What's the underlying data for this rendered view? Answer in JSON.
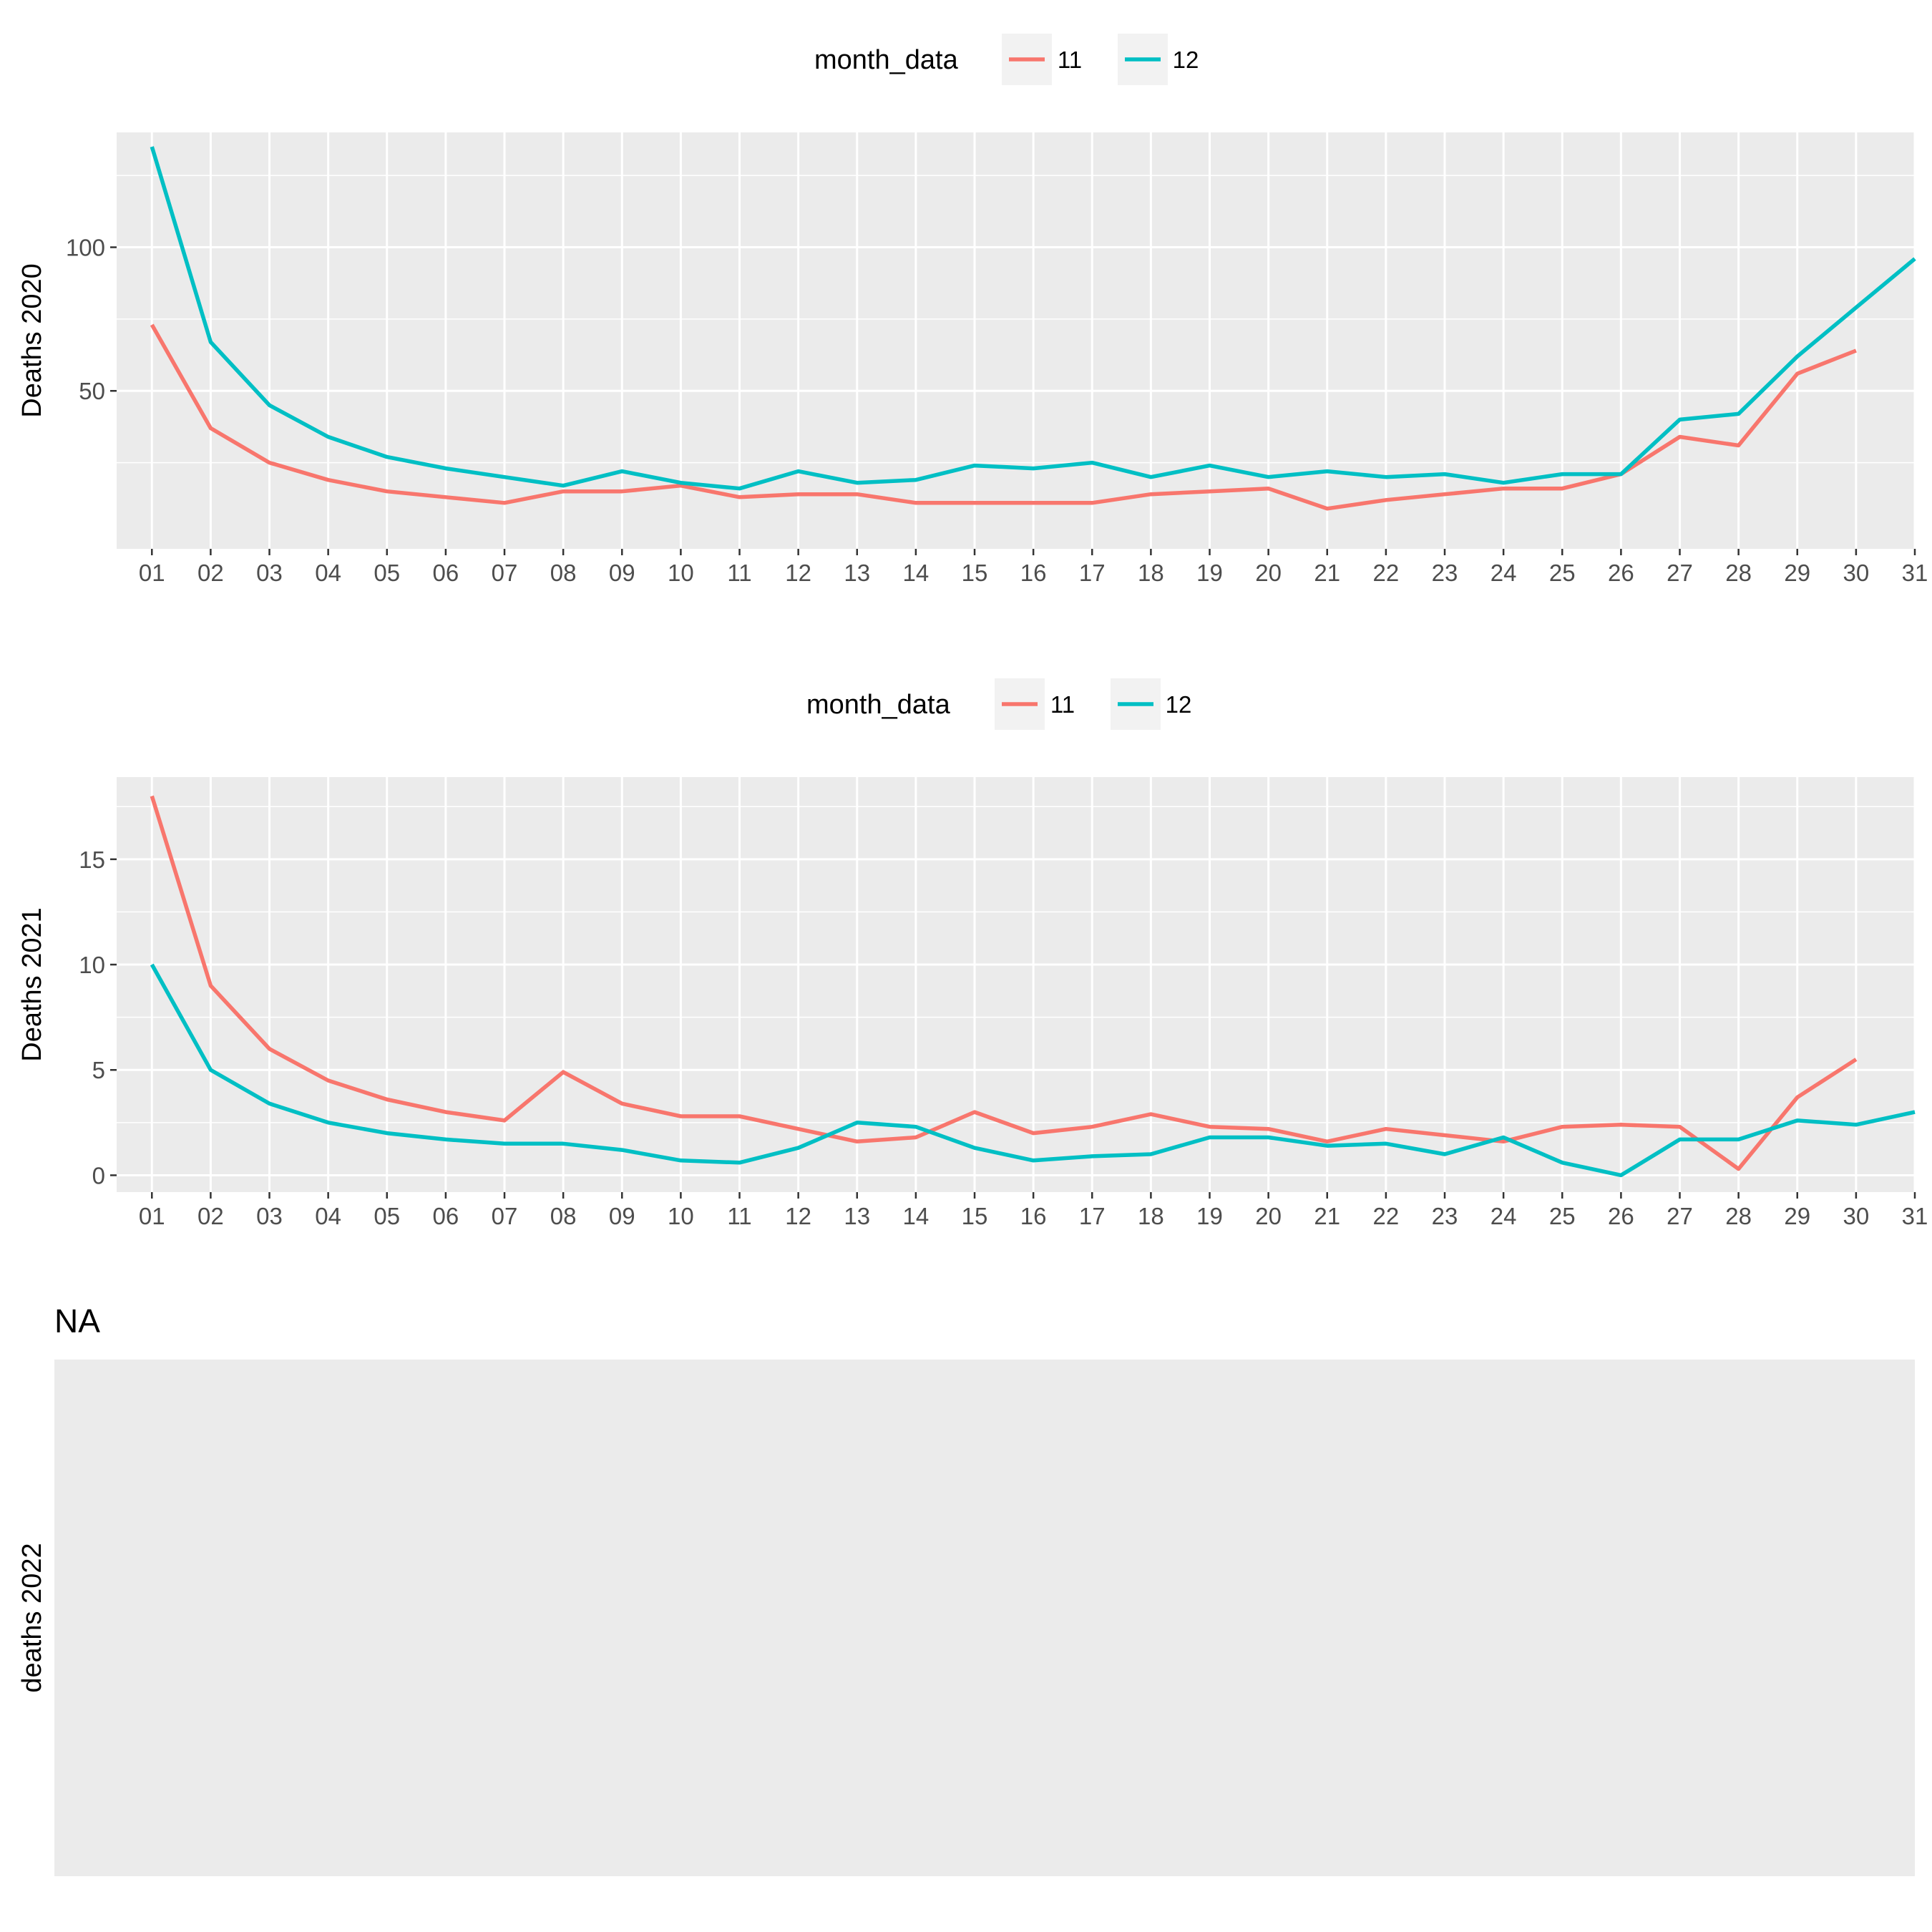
{
  "chart_data": [
    {
      "type": "line",
      "ylabel": "Deaths  2020",
      "x": [
        "01",
        "02",
        "03",
        "04",
        "05",
        "06",
        "07",
        "08",
        "09",
        "10",
        "11",
        "12",
        "13",
        "14",
        "15",
        "16",
        "17",
        "18",
        "19",
        "20",
        "21",
        "22",
        "23",
        "24",
        "25",
        "26",
        "27",
        "28",
        "29",
        "30",
        "31"
      ],
      "ylim": [
        -5,
        140
      ],
      "y_ticks": [
        50,
        100
      ],
      "legend": {
        "title": "month_data",
        "position": "top"
      },
      "series": [
        {
          "name": "11",
          "color": "#F8766D",
          "values": [
            73,
            37,
            25,
            19,
            15,
            13,
            11,
            15,
            15,
            17,
            13,
            14,
            14,
            11,
            11,
            11,
            11,
            14,
            15,
            16,
            9,
            12,
            14,
            16,
            16,
            21,
            34,
            31,
            56,
            64,
            null
          ]
        },
        {
          "name": "12",
          "color": "#00BFC4",
          "values": [
            135,
            67,
            45,
            34,
            27,
            23,
            20,
            17,
            22,
            18,
            16,
            22,
            18,
            19,
            24,
            23,
            25,
            20,
            24,
            20,
            22,
            20,
            21,
            18,
            21,
            21,
            40,
            42,
            62,
            79,
            96
          ]
        }
      ]
    },
    {
      "type": "line",
      "ylabel": "Deaths  2021",
      "x": [
        "01",
        "02",
        "03",
        "04",
        "05",
        "06",
        "07",
        "08",
        "09",
        "10",
        "11",
        "12",
        "13",
        "14",
        "15",
        "16",
        "17",
        "18",
        "19",
        "20",
        "21",
        "22",
        "23",
        "24",
        "25",
        "26",
        "27",
        "28",
        "29",
        "30",
        "31"
      ],
      "ylim": [
        -0.8,
        18.9
      ],
      "y_ticks": [
        0,
        5,
        10,
        15
      ],
      "legend": {
        "title": "month_data",
        "position": "top"
      },
      "series": [
        {
          "name": "11",
          "color": "#F8766D",
          "values": [
            18,
            9,
            6,
            4.5,
            3.6,
            3,
            2.6,
            4.9,
            3.4,
            2.8,
            2.8,
            2.2,
            1.6,
            1.8,
            3,
            2,
            2.3,
            2.9,
            2.3,
            2.2,
            1.6,
            2.2,
            1.9,
            1.6,
            2.3,
            2.4,
            2.3,
            0.3,
            3.7,
            5.5,
            null
          ]
        },
        {
          "name": "12",
          "color": "#00BFC4",
          "values": [
            10,
            5,
            3.4,
            2.5,
            2,
            1.7,
            1.5,
            1.5,
            1.2,
            0.7,
            0.6,
            1.3,
            2.5,
            2.3,
            1.3,
            0.7,
            0.9,
            1,
            1.8,
            1.8,
            1.4,
            1.5,
            1,
            1.8,
            0.6,
            0,
            1.7,
            1.7,
            2.6,
            2.4,
            3
          ]
        }
      ]
    },
    {
      "type": "line",
      "title": "NA",
      "ylabel": "deaths  2022",
      "x": [],
      "series": []
    }
  ]
}
